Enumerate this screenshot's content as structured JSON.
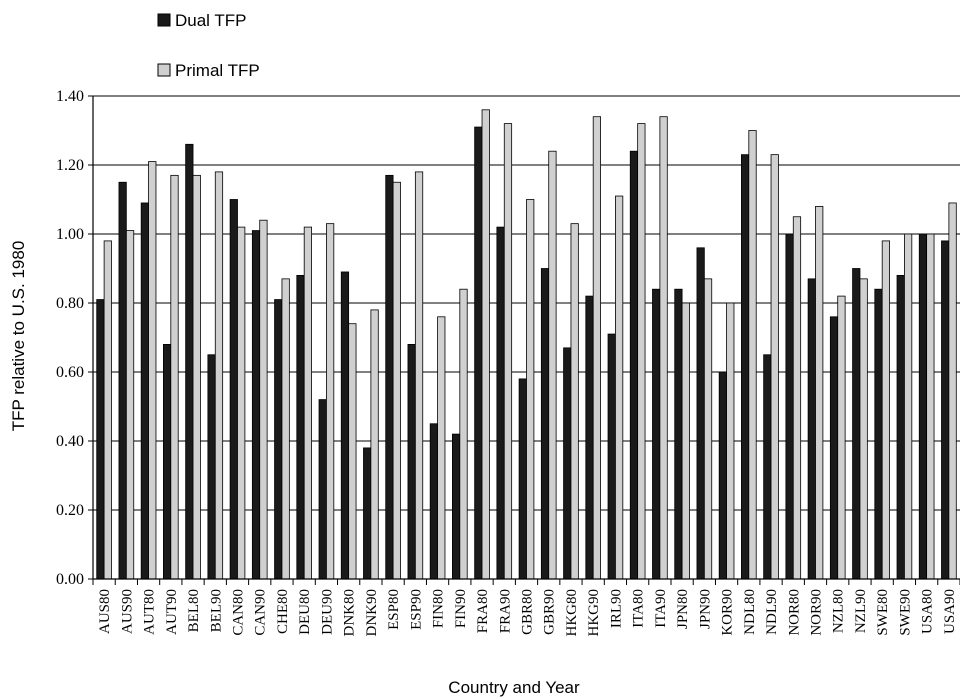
{
  "chart_data": {
    "type": "bar",
    "xlabel": "Country and Year",
    "ylabel": "TFP relative to U.S. 1980",
    "ylim": [
      0,
      1.4
    ],
    "yticks": [
      "0.00",
      "0.20",
      "0.40",
      "0.60",
      "0.80",
      "1.00",
      "1.20",
      "1.40"
    ],
    "grid": "horizontal",
    "legend_position": "top-left",
    "categories": [
      "AUS80",
      "AUS90",
      "AUT80",
      "AUT90",
      "BEL80",
      "BEL90",
      "CAN80",
      "CAN90",
      "CHE80",
      "DEU80",
      "DEU90",
      "DNK80",
      "DNK90",
      "ESP80",
      "ESP90",
      "FIN80",
      "FIN90",
      "FRA80",
      "FRA90",
      "GBR80",
      "GBR90",
      "HKG80",
      "HKG90",
      "IRL90",
      "ITA80",
      "ITA90",
      "JPN80",
      "JPN90",
      "KOR90",
      "NDL80",
      "NDL90",
      "NOR80",
      "NOR90",
      "NZL80",
      "NZL90",
      "SWE80",
      "SWE90",
      "USA80",
      "USA90"
    ],
    "series": [
      {
        "name": "Dual TFP",
        "color": "#1a1a1a",
        "values": [
          0.81,
          1.15,
          1.09,
          0.68,
          1.26,
          0.65,
          1.1,
          1.01,
          0.81,
          0.88,
          0.52,
          0.89,
          0.38,
          1.17,
          0.68,
          0.45,
          0.42,
          1.31,
          1.02,
          0.58,
          0.9,
          0.67,
          0.82,
          0.71,
          1.24,
          0.84,
          0.84,
          0.96,
          0.6,
          1.23,
          0.65,
          1.0,
          0.87,
          0.76,
          0.9,
          0.84,
          0.88,
          1.0,
          0.98
        ]
      },
      {
        "name": "Primal TFP",
        "color": "#d0d0d0",
        "values": [
          0.98,
          1.01,
          1.21,
          1.17,
          1.17,
          1.18,
          1.02,
          1.04,
          0.87,
          1.02,
          1.03,
          0.74,
          0.78,
          1.15,
          1.18,
          0.76,
          0.84,
          1.36,
          1.32,
          1.1,
          1.24,
          1.03,
          1.34,
          1.11,
          1.32,
          1.34,
          0.8,
          0.87,
          0.8,
          1.3,
          1.23,
          1.05,
          1.08,
          0.82,
          0.87,
          0.98,
          1.0,
          1.0,
          1.09
        ]
      }
    ]
  }
}
